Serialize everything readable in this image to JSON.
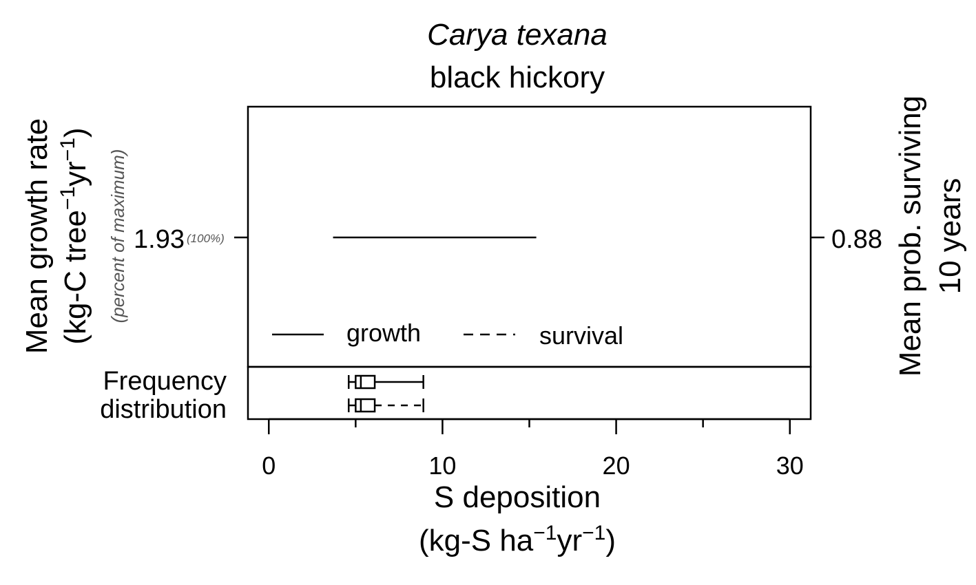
{
  "chart_data": {
    "type": "line",
    "title": "Carya texana",
    "subtitle": "black hickory",
    "xlabel": {
      "line1": "S deposition",
      "line2": {
        "prefix": "(kg-S ha",
        "exp1": "−1",
        "mid": "yr",
        "exp2": "−1",
        "suffix": ")"
      }
    },
    "ylabel_left": {
      "line1": "Mean growth rate",
      "line2": {
        "prefix": "(kg-C tree",
        "exp1": "−1",
        "mid": "yr",
        "exp2": "−1",
        "suffix": ")"
      },
      "note": "(percent of maximum)"
    },
    "ylabel_right": {
      "line1": "Mean prob. surviving",
      "line2": "10 years"
    },
    "xlim": [
      -1.2,
      31.2
    ],
    "x_ticks": [
      0,
      10,
      20,
      30
    ],
    "x_minor_ticks": [
      5,
      15,
      25
    ],
    "left_tick": {
      "label": "1.93",
      "pct": "(100%)"
    },
    "right_tick": {
      "label": "0.88"
    },
    "series": [
      {
        "name": "growth",
        "style": "solid",
        "x": [
          3.7,
          15.4
        ],
        "y": [
          1.93,
          1.93
        ]
      }
    ],
    "legend": {
      "position": "bottom-left",
      "items": [
        {
          "label": "growth",
          "style": "solid"
        },
        {
          "label": "survival",
          "style": "dashed"
        }
      ]
    },
    "distribution": {
      "label_line1": "Frequency",
      "label_line2": "distribution",
      "boxes": [
        {
          "name": "growth",
          "style": "solid",
          "min": 4.6,
          "q1": 5.0,
          "median": 5.3,
          "q3": 6.1,
          "max": 8.9
        },
        {
          "name": "survival",
          "style": "dashed",
          "min": 4.6,
          "q1": 5.0,
          "median": 5.3,
          "q3": 6.1,
          "max": 8.9
        }
      ]
    }
  }
}
